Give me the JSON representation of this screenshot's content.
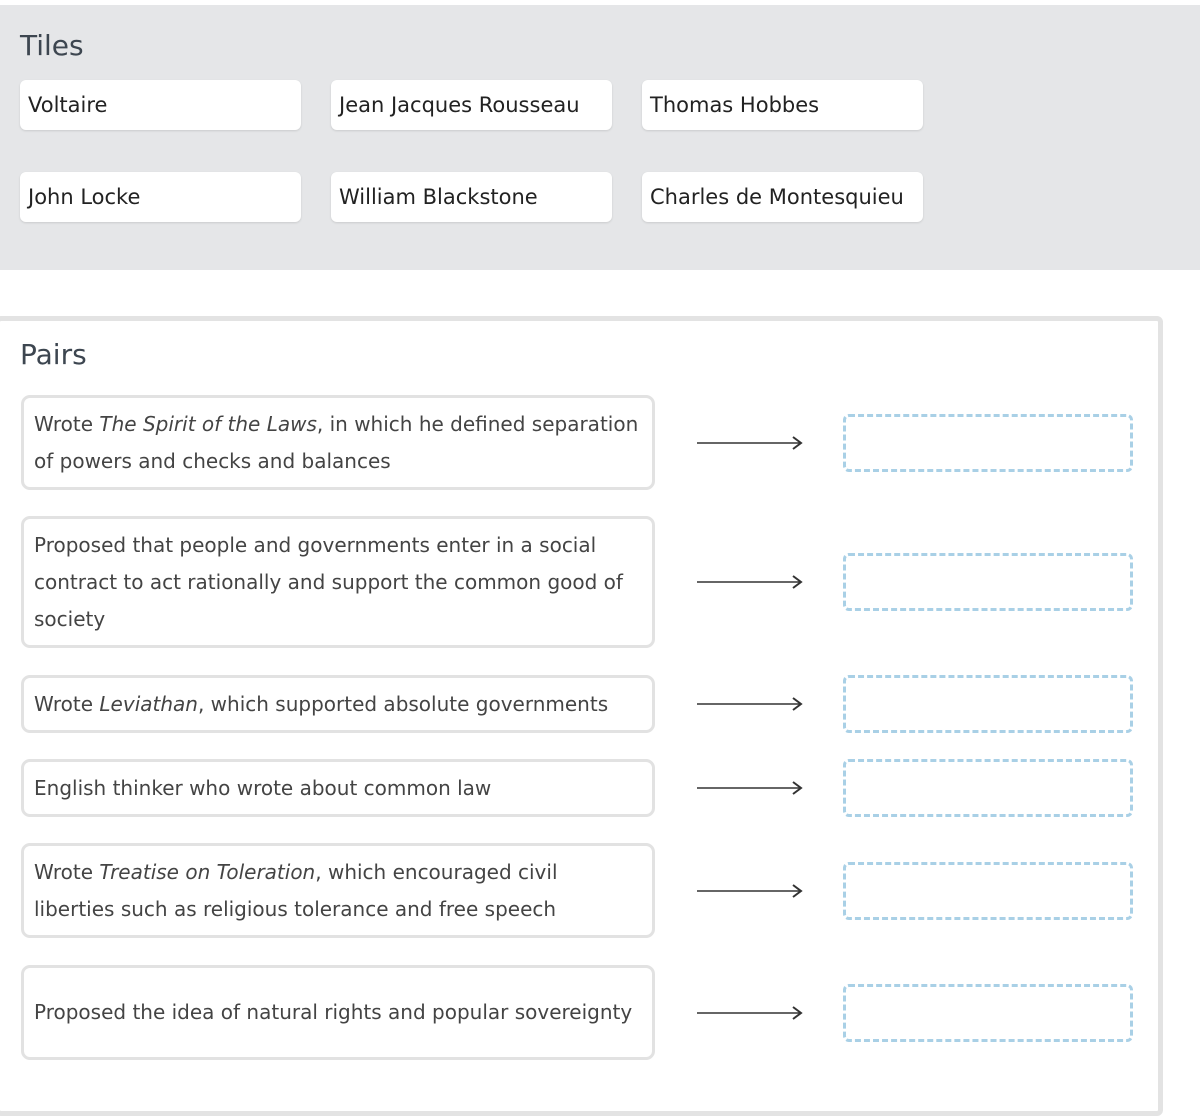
{
  "tiles": {
    "title": "Tiles",
    "items": [
      "Voltaire",
      "Jean Jacques Rousseau",
      "Thomas Hobbes",
      "John Locke",
      "William Blackstone",
      "Charles de Montesquieu"
    ]
  },
  "pairs": {
    "title": "Pairs",
    "items": [
      {
        "pre": "Wrote ",
        "em": "The Spirit of the Laws",
        "post": ", in which he defined separation of powers and checks and balances"
      },
      {
        "pre": "Proposed that people and governments enter in a social contract to act rationally and support the common good of society",
        "em": "",
        "post": ""
      },
      {
        "pre": "Wrote ",
        "em": "Leviathan",
        "post": ", which supported absolute governments"
      },
      {
        "pre": "English thinker who wrote about common law",
        "em": "",
        "post": ""
      },
      {
        "pre": "Wrote ",
        "em": "Treatise on Toleration",
        "post": ", which encouraged civil liberties such as religious tolerance and free speech"
      },
      {
        "pre": "Proposed the idea of natural rights and popular sovereignty",
        "em": "",
        "post": ""
      }
    ]
  },
  "colors": {
    "tiles_bg": "#e5e6e8",
    "drop_border": "#a9d0e6"
  }
}
